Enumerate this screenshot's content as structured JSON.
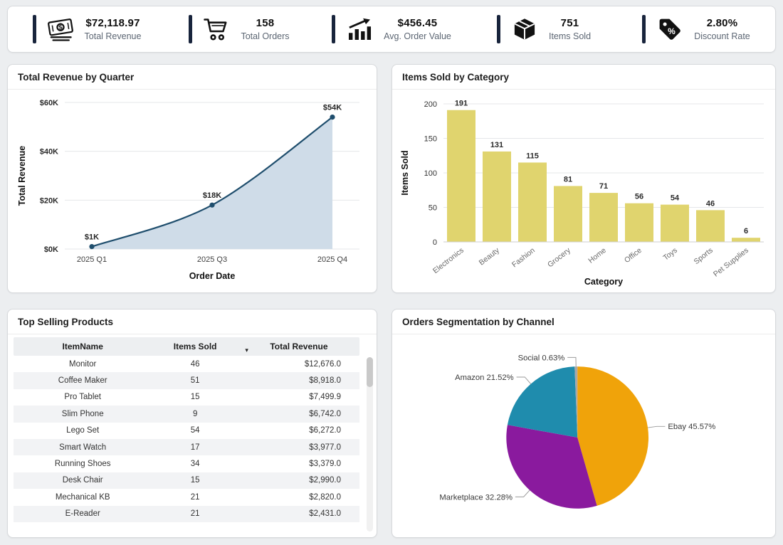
{
  "colors": {
    "kpi_accent": "#18243c",
    "page_background": "#eceef0",
    "card_background": "#ffffff"
  },
  "kpis": [
    {
      "icon": "money-icon",
      "value": "$72,118.97",
      "label": "Total Revenue"
    },
    {
      "icon": "cart-icon",
      "value": "158",
      "label": "Total Orders"
    },
    {
      "icon": "trend-chart-icon",
      "value": "$456.45",
      "label": "Avg. Order Value"
    },
    {
      "icon": "package-icon",
      "value": "751",
      "label": "Items Sold"
    },
    {
      "icon": "discount-tag-icon",
      "value": "2.80%",
      "label": "Discount Rate"
    }
  ],
  "cards": [
    {
      "title": "Total Revenue by Quarter"
    },
    {
      "title": "Items Sold by Category"
    },
    {
      "title": "Top Selling Products"
    },
    {
      "title": "Orders Segmentation by Channel"
    }
  ],
  "chart_data": [
    {
      "type": "area",
      "title": "Total Revenue by Quarter",
      "xlabel": "Order Date",
      "ylabel": "Total Revenue",
      "categories": [
        "2025 Q1",
        "2025 Q3",
        "2025 Q4"
      ],
      "values": [
        1000,
        18000,
        54000
      ],
      "point_labels": [
        "$1K",
        "$18K",
        "$54K"
      ],
      "ylim": [
        0,
        60000
      ],
      "yticks": [
        {
          "v": 0,
          "label": "$0K"
        },
        {
          "v": 20000,
          "label": "$20K"
        },
        {
          "v": 40000,
          "label": "$40K"
        },
        {
          "v": 60000,
          "label": "$60K"
        }
      ],
      "grid": true,
      "legend": "none",
      "line_color": "#1f4e6d",
      "fill_color": "#cfdce8"
    },
    {
      "type": "bar",
      "title": "Items Sold by Category",
      "xlabel": "Category",
      "ylabel": "Items Sold",
      "categories": [
        "Electronics",
        "Beauty",
        "Fashion",
        "Grocery",
        "Home",
        "Office",
        "Toys",
        "Sports",
        "Pet Supplies"
      ],
      "values": [
        191,
        131,
        115,
        81,
        71,
        56,
        54,
        46,
        6
      ],
      "ylim": [
        0,
        200
      ],
      "yticks": [
        0,
        50,
        100,
        150,
        200
      ],
      "grid": true,
      "legend": "none",
      "bar_color": "#e0d46e"
    },
    {
      "type": "table",
      "title": "Top Selling Products",
      "columns": [
        "ItemName",
        "Items Sold",
        "Total Revenue"
      ],
      "sort_column_index": 1,
      "sort_direction": "desc",
      "rows": [
        [
          "Monitor",
          "46",
          "$12,676.0"
        ],
        [
          "Coffee Maker",
          "51",
          "$8,918.0"
        ],
        [
          "Pro Tablet",
          "15",
          "$7,499.9"
        ],
        [
          "Slim Phone",
          "9",
          "$6,742.0"
        ],
        [
          "Lego Set",
          "54",
          "$6,272.0"
        ],
        [
          "Smart Watch",
          "17",
          "$3,977.0"
        ],
        [
          "Running Shoes",
          "34",
          "$3,379.0"
        ],
        [
          "Desk Chair",
          "15",
          "$2,990.0"
        ],
        [
          "Mechanical KB",
          "21",
          "$2,820.0"
        ],
        [
          "E-Reader",
          "21",
          "$2,431.0"
        ]
      ]
    },
    {
      "type": "pie",
      "title": "Orders Segmentation by Channel",
      "slices": [
        {
          "label": "Ebay",
          "pct": 45.57,
          "color": "#f0a30a"
        },
        {
          "label": "Marketplace",
          "pct": 32.28,
          "color": "#8a1a9e"
        },
        {
          "label": "Amazon",
          "pct": 21.52,
          "color": "#1f8cad"
        },
        {
          "label": "Social",
          "pct": 0.63,
          "color": "#a8a8a8"
        }
      ]
    }
  ]
}
